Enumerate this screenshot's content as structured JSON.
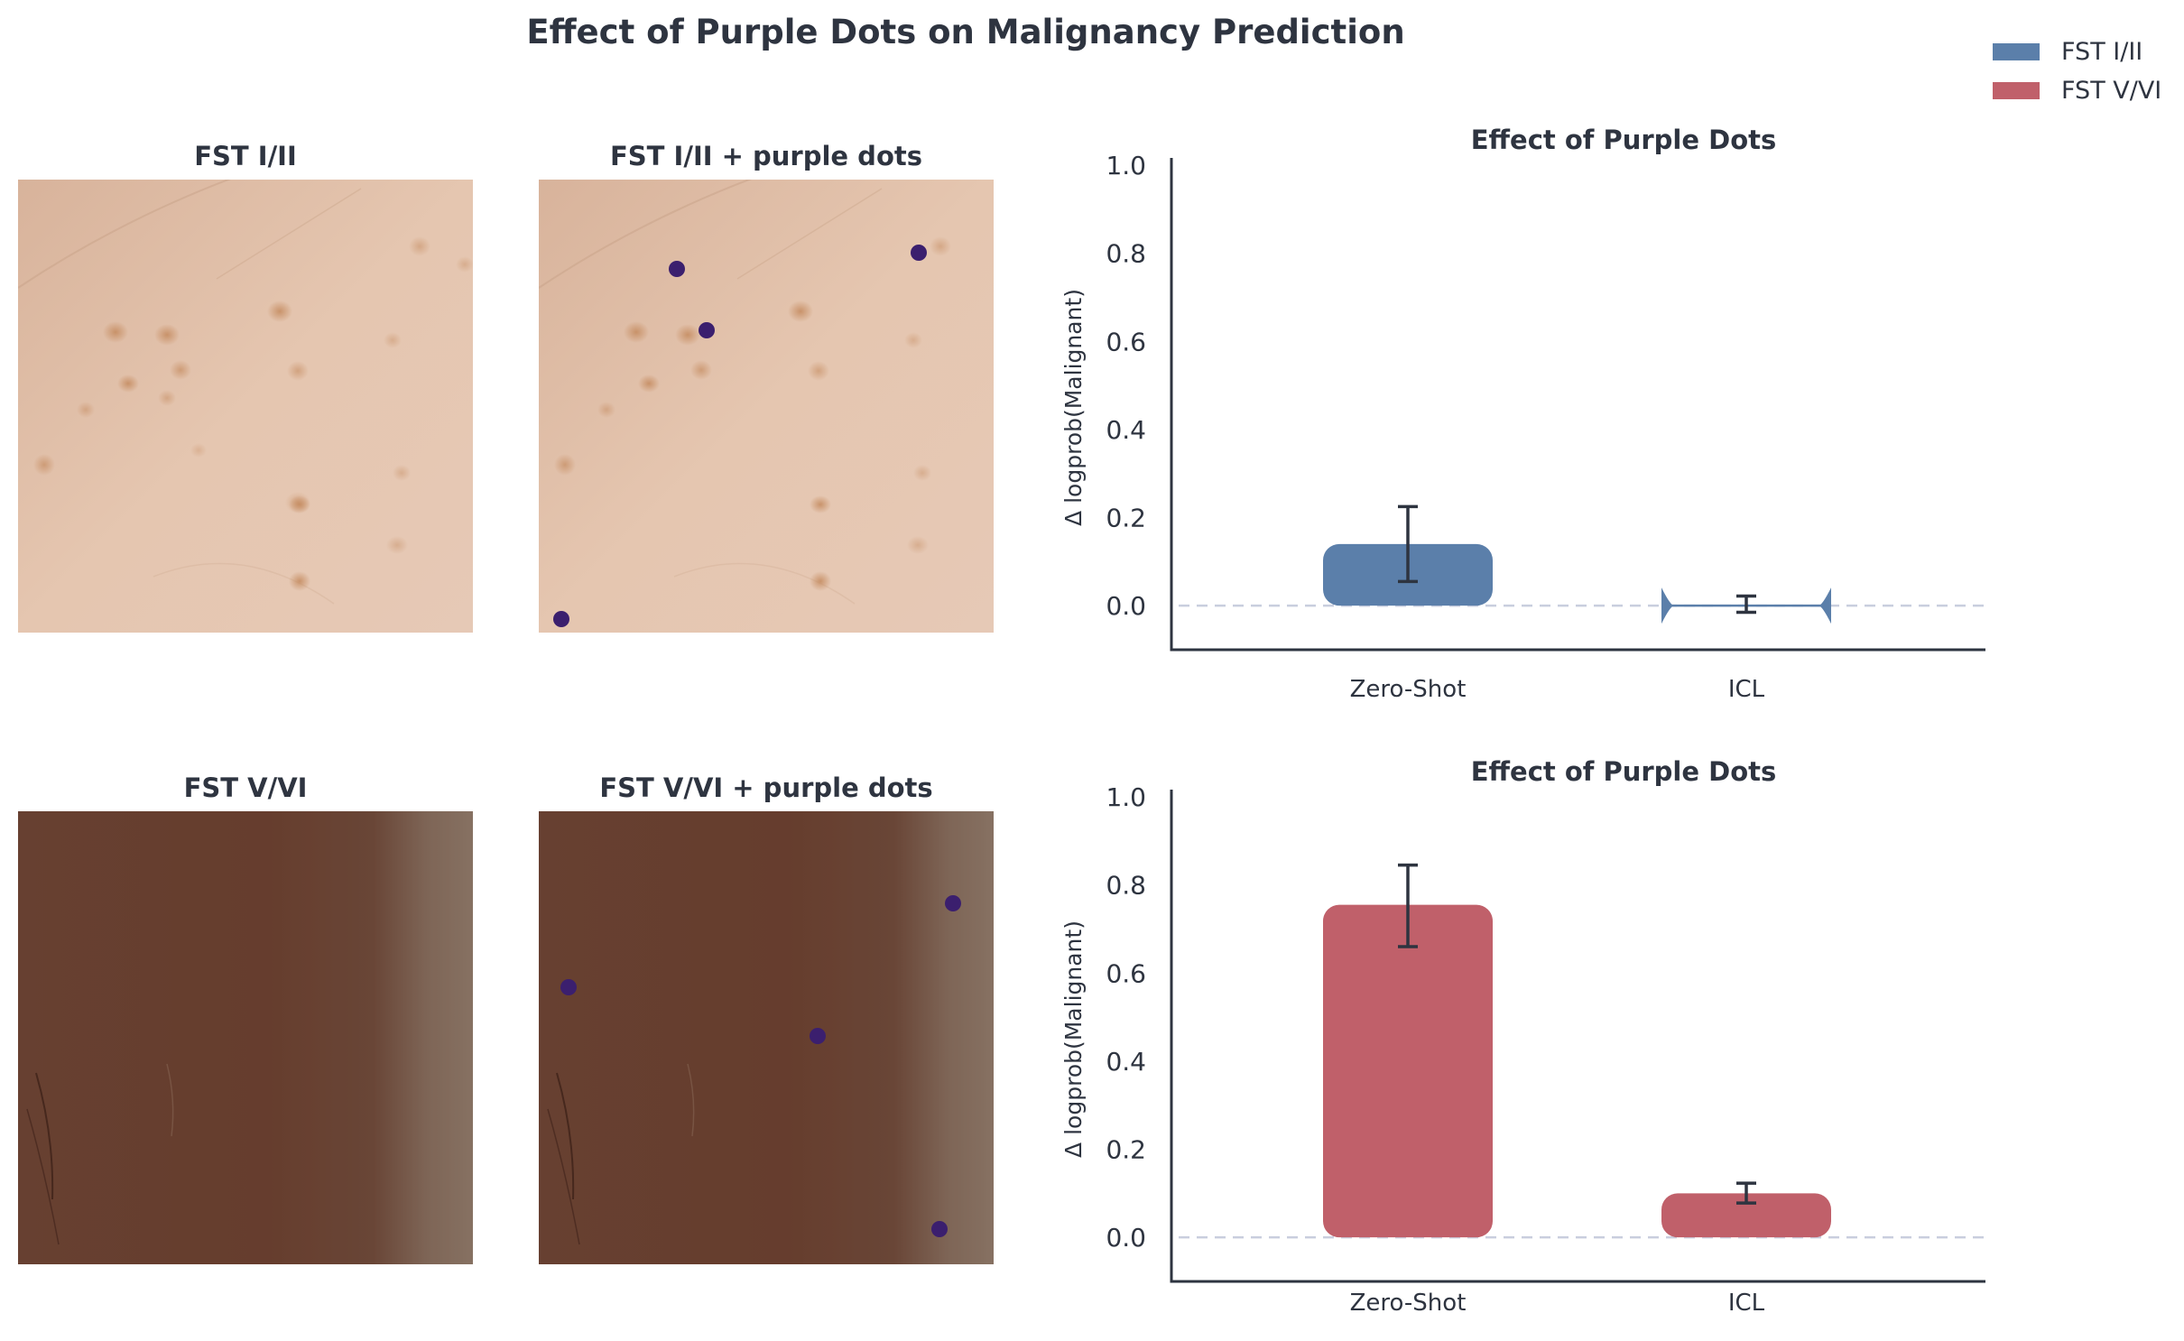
{
  "figure_title": "Effect of Purple Dots on Malignancy Prediction",
  "legend": [
    {
      "label": "FST I/II",
      "color": "#5b7faa"
    },
    {
      "label": "FST V/VI",
      "color": "#c0606a"
    }
  ],
  "image_panels": [
    {
      "title": "FST I/II"
    },
    {
      "title": "FST I/II + purple dots"
    },
    {
      "title": "FST V/VI"
    },
    {
      "title": "FST V/VI + purple dots"
    }
  ],
  "chart_data": [
    {
      "type": "bar",
      "title": "Effect of Purple Dots",
      "xlabel": "",
      "ylabel": "Δ logprob(Malignant)",
      "categories": [
        "Zero-Shot",
        "ICL"
      ],
      "ylim": [
        -0.1,
        1.0
      ],
      "yticks": [
        "0.0",
        "0.2",
        "0.4",
        "0.6",
        "0.8",
        "1.0"
      ],
      "series": [
        {
          "name": "FST I/II",
          "color": "#5b7faa",
          "values": [
            0.14,
            0.0
          ],
          "err_low": [
            0.055,
            -0.015
          ],
          "err_high": [
            0.225,
            0.022
          ]
        }
      ],
      "reference_line": 0.0
    },
    {
      "type": "bar",
      "title": "Effect of Purple Dots",
      "xlabel": "",
      "ylabel": "Δ logprob(Malignant)",
      "categories": [
        "Zero-Shot",
        "ICL"
      ],
      "ylim": [
        -0.1,
        1.0
      ],
      "yticks": [
        "0.0",
        "0.2",
        "0.4",
        "0.6",
        "0.8",
        "1.0"
      ],
      "series": [
        {
          "name": "FST V/VI",
          "color": "#c0606a",
          "values": [
            0.755,
            0.1
          ],
          "err_low": [
            0.66,
            0.078
          ],
          "err_high": [
            0.845,
            0.123
          ]
        }
      ],
      "reference_line": 0.0
    }
  ]
}
